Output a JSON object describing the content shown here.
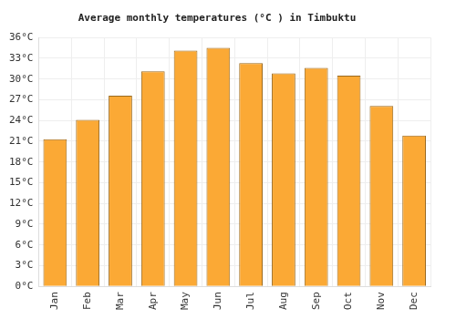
{
  "chart_data": {
    "type": "bar",
    "title": "Average monthly temperatures (°C ) in Timbuktu",
    "categories": [
      "Jan",
      "Feb",
      "Mar",
      "Apr",
      "May",
      "Jun",
      "Jul",
      "Aug",
      "Sep",
      "Oct",
      "Nov",
      "Dec"
    ],
    "values": [
      21.3,
      24.1,
      27.6,
      31.1,
      34.1,
      34.5,
      32.3,
      30.8,
      31.6,
      30.5,
      26.1,
      21.8
    ],
    "color": "#fba935",
    "ylim": [
      0,
      36
    ],
    "yticks": [
      {
        "value": 0,
        "label": "0°C"
      },
      {
        "value": 3,
        "label": "3°C"
      },
      {
        "value": 6,
        "label": "6°C"
      },
      {
        "value": 9,
        "label": "9°C"
      },
      {
        "value": 12,
        "label": "12°C"
      },
      {
        "value": 15,
        "label": "15°C"
      },
      {
        "value": 18,
        "label": "18°C"
      },
      {
        "value": 21,
        "label": "21°C"
      },
      {
        "value": 24,
        "label": "24°C"
      },
      {
        "value": 27,
        "label": "27°C"
      },
      {
        "value": 30,
        "label": "30°C"
      },
      {
        "value": 33,
        "label": "33°C"
      },
      {
        "value": 36,
        "label": "36°C"
      }
    ],
    "grid": true
  }
}
